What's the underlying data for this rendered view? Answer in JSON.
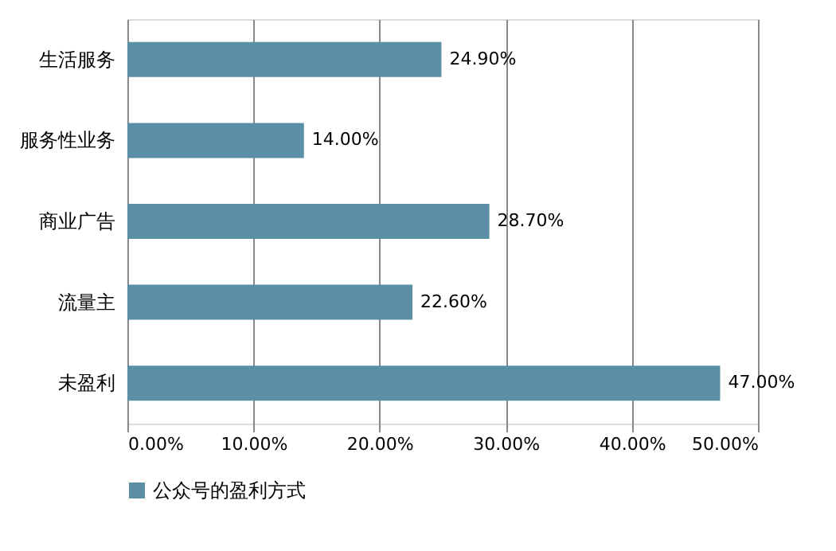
{
  "chart_data": {
    "type": "bar",
    "orientation": "horizontal",
    "categories": [
      "生活服务",
      "服务性业务",
      "商业广告",
      "流量主",
      "未盈利"
    ],
    "series": [
      {
        "name": "公众号的盈利方式",
        "color": "#5b8fa6",
        "values": [
          24.9,
          14.0,
          28.7,
          22.6,
          47.0
        ],
        "value_labels": [
          "24.90%",
          "14.00%",
          "28.70%",
          "22.60%",
          "47.00%"
        ]
      }
    ],
    "xlim": [
      0,
      50
    ],
    "xticks": [
      {
        "value": 0,
        "label": "0.00%"
      },
      {
        "value": 10,
        "label": "10.00%"
      },
      {
        "value": 20,
        "label": "20.00%"
      },
      {
        "value": 30,
        "label": "30.00%"
      },
      {
        "value": 40,
        "label": "40.00%"
      },
      {
        "value": 50,
        "label": "50.00%"
      }
    ],
    "grid": "x",
    "legend": "bottom"
  }
}
